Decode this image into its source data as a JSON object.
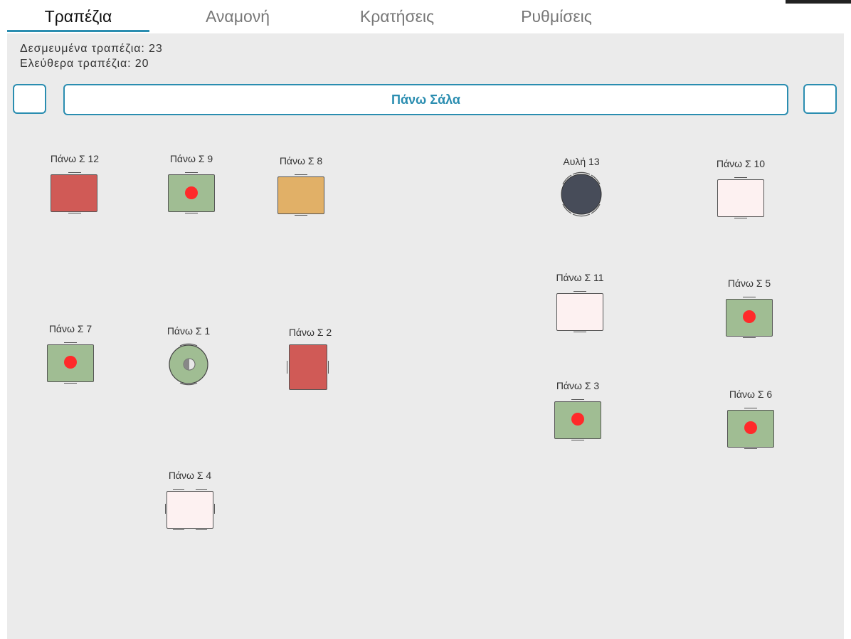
{
  "tabs": [
    {
      "label": "Τραπέζια",
      "active": true
    },
    {
      "label": "Αναμονή",
      "active": false
    },
    {
      "label": "Κρατήσεις",
      "active": false
    },
    {
      "label": "Ρυθμίσεις",
      "active": false
    }
  ],
  "stats": {
    "reserved": "Δεσμευμένα τραπέζια: 23",
    "free": "Ελεύθερα τραπέζια: 20"
  },
  "room": {
    "name": "Πάνω Σάλα",
    "prev_icon": "chevron-left-icon",
    "next_icon": "chevron-right-icon"
  },
  "colors": {
    "accent": "#2a8db0",
    "occupied_red": "#d05a56",
    "occupied_green": "#a0bd93",
    "pending_orange": "#e1b067",
    "free_pink": "#fdf1f1",
    "dark": "#474c59",
    "alert_dot": "#ff2a2a"
  },
  "tables": [
    {
      "label": "Πάνω Σ 12",
      "status": "occupied-red",
      "shape": "square"
    },
    {
      "label": "Πάνω Σ 9",
      "status": "occupied-green-alert",
      "shape": "square"
    },
    {
      "label": "Πάνω Σ 8",
      "status": "pending-orange",
      "shape": "square"
    },
    {
      "label": "Αυλή 13",
      "status": "dark",
      "shape": "round"
    },
    {
      "label": "Πάνω Σ 10",
      "status": "free",
      "shape": "square"
    },
    {
      "label": "Πάνω Σ 11",
      "status": "free",
      "shape": "square"
    },
    {
      "label": "Πάνω Σ 5",
      "status": "occupied-green-alert",
      "shape": "square"
    },
    {
      "label": "Πάνω Σ 7",
      "status": "occupied-green-alert",
      "shape": "square"
    },
    {
      "label": "Πάνω Σ 1",
      "status": "occupied-green-half",
      "shape": "round"
    },
    {
      "label": "Πάνω Σ 2",
      "status": "occupied-red",
      "shape": "rect-tall"
    },
    {
      "label": "Πάνω Σ 3",
      "status": "occupied-green-alert",
      "shape": "square"
    },
    {
      "label": "Πάνω Σ 6",
      "status": "occupied-green-alert",
      "shape": "square"
    },
    {
      "label": "Πάνω Σ 4",
      "status": "free",
      "shape": "square"
    }
  ]
}
